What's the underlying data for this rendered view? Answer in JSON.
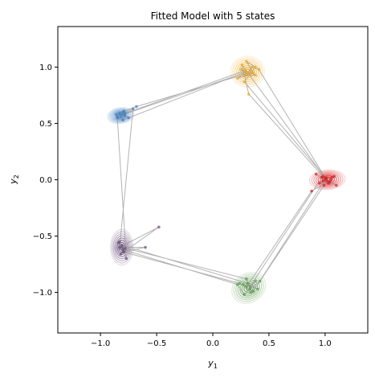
{
  "chart_data": {
    "type": "scatter",
    "title": "Fitted Model with 5 states",
    "xlabel_base": "y",
    "xlabel_sub": "1",
    "ylabel_base": "y",
    "ylabel_sub": "2",
    "xlim": [
      -1.38,
      1.38
    ],
    "ylim": [
      -1.36,
      1.36
    ],
    "xticks": [
      -1.0,
      -0.5,
      0.0,
      0.5,
      1.0
    ],
    "xtick_labels": [
      "−1.0",
      "−0.5",
      "0.0",
      "0.5",
      "1.0"
    ],
    "yticks": [
      -1.0,
      -0.5,
      0.0,
      0.5,
      1.0
    ],
    "ytick_labels": [
      "−1.0",
      "−0.5",
      "0.0",
      "0.5",
      "1.0"
    ],
    "grid": false,
    "trajectory_color": "#999999",
    "states": [
      {
        "mean": [
          0.31,
          0.96
        ],
        "color": "#F0A81E",
        "cov": [
          [
            0.0036,
            0.0
          ],
          [
            0.0,
            0.003
          ]
        ]
      },
      {
        "mean": [
          -0.82,
          0.57
        ],
        "color": "#3E7FC1",
        "cov": [
          [
            0.0022,
            0.0002
          ],
          [
            0.0002,
            0.0008
          ]
        ]
      },
      {
        "mean": [
          1.02,
          0.0
        ],
        "color": "#D7191C",
        "cov": [
          [
            0.004,
            0.0002
          ],
          [
            0.0002,
            0.0012
          ]
        ]
      },
      {
        "mean": [
          -0.81,
          -0.6
        ],
        "color": "#6B4C7A",
        "cov": [
          [
            0.0016,
            0.0
          ],
          [
            0.0,
            0.004
          ]
        ]
      },
      {
        "mean": [
          0.32,
          -0.96
        ],
        "color": "#5B9A4E",
        "cov": [
          [
            0.0036,
            0.0006
          ],
          [
            0.0006,
            0.003
          ]
        ]
      }
    ],
    "trajectory": [
      [
        -0.8,
        0.6
      ],
      [
        -0.78,
        0.57
      ],
      [
        -0.83,
        0.59
      ],
      [
        -0.75,
        0.55
      ],
      [
        -0.86,
        0.58
      ],
      [
        -0.79,
        0.61
      ],
      [
        -0.68,
        0.65
      ],
      [
        0.3,
        0.94
      ],
      [
        0.25,
        0.98
      ],
      [
        0.38,
        0.93
      ],
      [
        0.28,
        0.92
      ],
      [
        0.35,
        1.0
      ],
      [
        0.41,
        0.98
      ],
      [
        1.0,
        0.02
      ],
      [
        0.95,
        -0.03
      ],
      [
        1.08,
        0.03
      ],
      [
        0.98,
        -0.01
      ],
      [
        1.05,
        0.0
      ],
      [
        0.88,
        -0.1
      ],
      [
        0.3,
        -0.95
      ],
      [
        0.34,
        -1.0
      ],
      [
        0.27,
        -0.93
      ],
      [
        0.4,
        -0.97
      ],
      [
        0.31,
        -0.92
      ],
      [
        -0.81,
        -0.58
      ],
      [
        -0.79,
        -0.64
      ],
      [
        -0.84,
        -0.56
      ],
      [
        -0.78,
        -0.61
      ],
      [
        -0.82,
        -0.66
      ],
      [
        -0.48,
        -0.42
      ],
      [
        -0.83,
        -0.6
      ],
      [
        -0.71,
        0.63
      ],
      [
        -0.85,
        0.56
      ],
      [
        -0.8,
        0.53
      ],
      [
        0.3,
        0.96
      ],
      [
        0.22,
        0.9
      ],
      [
        0.36,
        0.95
      ],
      [
        0.3,
        1.05
      ],
      [
        0.38,
        1.0
      ],
      [
        0.28,
        0.87
      ],
      [
        1.01,
        0.01
      ],
      [
        1.04,
        -0.02
      ],
      [
        0.92,
        0.05
      ],
      [
        1.1,
        -0.05
      ],
      [
        0.97,
        0.02
      ],
      [
        0.33,
        -0.95
      ],
      [
        0.38,
        -0.9
      ],
      [
        0.28,
        -1.02
      ],
      [
        0.22,
        -0.93
      ],
      [
        -0.8,
        -0.62
      ],
      [
        -0.83,
        -0.55
      ],
      [
        -0.77,
        -0.7
      ],
      [
        -0.85,
        0.55
      ],
      [
        -0.78,
        0.59
      ],
      [
        0.29,
        0.97
      ],
      [
        0.33,
        0.93
      ],
      [
        0.26,
        1.02
      ],
      [
        0.32,
        0.76
      ],
      [
        0.98,
        0.03
      ],
      [
        1.03,
        -0.03
      ],
      [
        1.06,
        0.02
      ],
      [
        0.99,
        -0.05
      ],
      [
        0.42,
        -0.9
      ],
      [
        0.33,
        -0.97
      ],
      [
        0.3,
        -0.88
      ],
      [
        -0.81,
        -0.6
      ],
      [
        -0.6,
        -0.6
      ],
      [
        -0.8,
        -0.64
      ],
      [
        0.24,
        -0.92
      ],
      [
        0.36,
        -0.99
      ],
      [
        1.0,
        0.0
      ],
      [
        1.02,
        -0.01
      ],
      [
        0.31,
        0.95
      ],
      [
        0.34,
        0.97
      ],
      [
        -0.82,
        0.57
      ],
      [
        -0.8,
        0.58
      ]
    ]
  }
}
